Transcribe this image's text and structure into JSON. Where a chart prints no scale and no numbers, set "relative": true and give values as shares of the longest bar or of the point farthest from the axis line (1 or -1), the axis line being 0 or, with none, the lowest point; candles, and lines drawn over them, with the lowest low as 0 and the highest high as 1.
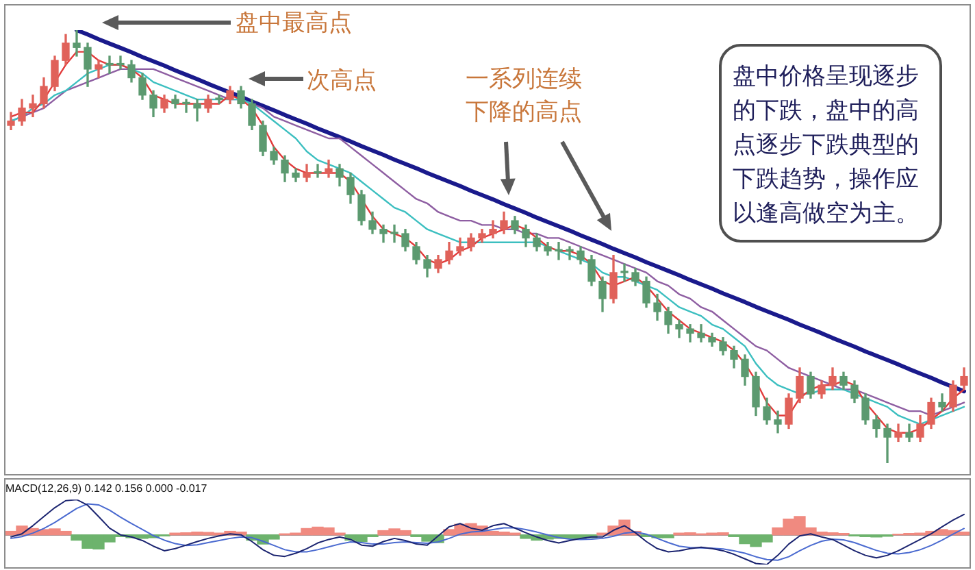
{
  "chart_data": [
    {
      "type": "candlestick",
      "relative": true,
      "annotations": [
        "盘中最高点",
        "次高点",
        "一系列连续下降的高点",
        "盘中价格呈现逐步的下跌，盘中的高点逐步下跌典型的下跌趋势，操作应以逢高做空为主。"
      ],
      "categories": [
        null,
        null,
        null,
        null,
        null,
        null,
        null,
        null,
        null,
        null,
        null,
        null,
        null,
        null,
        null,
        null,
        null,
        null,
        null,
        null,
        null,
        null,
        null,
        null,
        null,
        null,
        null,
        null,
        null,
        null,
        null,
        null,
        null,
        null,
        null,
        null,
        null,
        null,
        null,
        null,
        null,
        null,
        null,
        null,
        null,
        null,
        null,
        null,
        null,
        null,
        null,
        null,
        null,
        null,
        null,
        null,
        null,
        null,
        null,
        null,
        null,
        null,
        null,
        null,
        null,
        null,
        null,
        null,
        null,
        null,
        null,
        null,
        null,
        null,
        null,
        null,
        null,
        null,
        null,
        null,
        null,
        null,
        null,
        null,
        null,
        null,
        null,
        null
      ],
      "ohlc": [
        [
          0.78,
          0.81,
          0.77,
          0.79
        ],
        [
          0.79,
          0.84,
          0.78,
          0.82
        ],
        [
          0.82,
          0.85,
          0.8,
          0.83
        ],
        [
          0.83,
          0.89,
          0.82,
          0.87
        ],
        [
          0.87,
          0.94,
          0.86,
          0.93
        ],
        [
          0.93,
          0.99,
          0.92,
          0.97
        ],
        [
          0.97,
          1.0,
          0.94,
          0.96
        ],
        [
          0.96,
          0.97,
          0.87,
          0.91
        ],
        [
          0.91,
          0.93,
          0.89,
          0.92
        ],
        [
          0.92,
          0.94,
          0.9,
          0.92
        ],
        [
          0.92,
          0.94,
          0.91,
          0.92
        ],
        [
          0.92,
          0.93,
          0.88,
          0.89
        ],
        [
          0.89,
          0.9,
          0.84,
          0.85
        ],
        [
          0.85,
          0.86,
          0.8,
          0.82
        ],
        [
          0.82,
          0.85,
          0.81,
          0.84
        ],
        [
          0.84,
          0.85,
          0.82,
          0.83
        ],
        [
          0.83,
          0.84,
          0.81,
          0.83
        ],
        [
          0.83,
          0.84,
          0.79,
          0.82
        ],
        [
          0.82,
          0.85,
          0.81,
          0.84
        ],
        [
          0.84,
          0.85,
          0.83,
          0.84
        ],
        [
          0.84,
          0.87,
          0.83,
          0.86
        ],
        [
          0.86,
          0.87,
          0.82,
          0.83
        ],
        [
          0.83,
          0.84,
          0.77,
          0.78
        ],
        [
          0.78,
          0.79,
          0.71,
          0.72
        ],
        [
          0.72,
          0.73,
          0.69,
          0.7
        ],
        [
          0.7,
          0.71,
          0.65,
          0.67
        ],
        [
          0.67,
          0.68,
          0.65,
          0.66
        ],
        [
          0.66,
          0.69,
          0.65,
          0.67
        ],
        [
          0.67,
          0.69,
          0.66,
          0.67
        ],
        [
          0.67,
          0.7,
          0.66,
          0.68
        ],
        [
          0.68,
          0.69,
          0.64,
          0.66
        ],
        [
          0.66,
          0.67,
          0.6,
          0.62
        ],
        [
          0.62,
          0.63,
          0.55,
          0.56
        ],
        [
          0.56,
          0.58,
          0.53,
          0.54
        ],
        [
          0.54,
          0.55,
          0.51,
          0.53
        ],
        [
          0.53,
          0.55,
          0.51,
          0.53
        ],
        [
          0.53,
          0.54,
          0.49,
          0.5
        ],
        [
          0.5,
          0.51,
          0.46,
          0.47
        ],
        [
          0.47,
          0.48,
          0.43,
          0.45
        ],
        [
          0.45,
          0.48,
          0.44,
          0.47
        ],
        [
          0.47,
          0.51,
          0.46,
          0.49
        ],
        [
          0.49,
          0.52,
          0.48,
          0.5
        ],
        [
          0.5,
          0.53,
          0.49,
          0.52
        ],
        [
          0.52,
          0.54,
          0.51,
          0.53
        ],
        [
          0.53,
          0.56,
          0.52,
          0.54
        ],
        [
          0.54,
          0.58,
          0.53,
          0.56
        ],
        [
          0.56,
          0.57,
          0.53,
          0.54
        ],
        [
          0.54,
          0.55,
          0.5,
          0.52
        ],
        [
          0.52,
          0.53,
          0.49,
          0.5
        ],
        [
          0.5,
          0.51,
          0.48,
          0.49
        ],
        [
          0.49,
          0.51,
          0.47,
          0.49
        ],
        [
          0.49,
          0.5,
          0.47,
          0.49
        ],
        [
          0.49,
          0.5,
          0.46,
          0.47
        ],
        [
          0.47,
          0.48,
          0.41,
          0.42
        ],
        [
          0.42,
          0.43,
          0.35,
          0.38
        ],
        [
          0.38,
          0.48,
          0.37,
          0.44
        ],
        [
          0.44,
          0.46,
          0.42,
          0.44
        ],
        [
          0.44,
          0.45,
          0.41,
          0.42
        ],
        [
          0.42,
          0.43,
          0.36,
          0.37
        ],
        [
          0.37,
          0.39,
          0.33,
          0.35
        ],
        [
          0.35,
          0.36,
          0.3,
          0.32
        ],
        [
          0.32,
          0.33,
          0.29,
          0.31
        ],
        [
          0.31,
          0.32,
          0.28,
          0.3
        ],
        [
          0.3,
          0.32,
          0.28,
          0.29
        ],
        [
          0.29,
          0.3,
          0.27,
          0.28
        ],
        [
          0.28,
          0.29,
          0.25,
          0.26
        ],
        [
          0.26,
          0.27,
          0.22,
          0.24
        ],
        [
          0.24,
          0.25,
          0.18,
          0.2
        ],
        [
          0.2,
          0.21,
          0.11,
          0.13
        ],
        [
          0.13,
          0.15,
          0.09,
          0.1
        ],
        [
          0.1,
          0.12,
          0.07,
          0.09
        ],
        [
          0.09,
          0.16,
          0.08,
          0.15
        ],
        [
          0.15,
          0.22,
          0.14,
          0.2
        ],
        [
          0.2,
          0.21,
          0.15,
          0.16
        ],
        [
          0.16,
          0.19,
          0.15,
          0.18
        ],
        [
          0.18,
          0.22,
          0.17,
          0.2
        ],
        [
          0.2,
          0.21,
          0.17,
          0.18
        ],
        [
          0.18,
          0.19,
          0.14,
          0.15
        ],
        [
          0.15,
          0.16,
          0.09,
          0.1
        ],
        [
          0.1,
          0.11,
          0.06,
          0.08
        ],
        [
          0.08,
          0.09,
          0.0,
          0.06
        ],
        [
          0.06,
          0.09,
          0.05,
          0.07
        ],
        [
          0.07,
          0.09,
          0.05,
          0.06
        ],
        [
          0.06,
          0.11,
          0.05,
          0.09
        ],
        [
          0.09,
          0.15,
          0.08,
          0.14
        ],
        [
          0.14,
          0.16,
          0.12,
          0.13
        ],
        [
          0.13,
          0.19,
          0.12,
          0.18
        ],
        [
          0.18,
          0.22,
          0.17,
          0.2
        ]
      ],
      "colors": [
        "#e0625a",
        "#e0625a",
        "#e0625a",
        "#e0625a",
        "#e0625a",
        "#e0625a",
        "#5c9a70",
        "#5c9a70",
        "#e0625a",
        "#5c9a70",
        "#5c9a70",
        "#5c9a70",
        "#5c9a70",
        "#5c9a70",
        "#e0625a",
        "#5c9a70",
        "#5c9a70",
        "#5c9a70",
        "#e0625a",
        "#5c9a70",
        "#e0625a",
        "#5c9a70",
        "#5c9a70",
        "#5c9a70",
        "#5c9a70",
        "#5c9a70",
        "#5c9a70",
        "#e0625a",
        "#5c9a70",
        "#e0625a",
        "#5c9a70",
        "#5c9a70",
        "#5c9a70",
        "#5c9a70",
        "#5c9a70",
        "#5c9a70",
        "#5c9a70",
        "#5c9a70",
        "#5c9a70",
        "#e0625a",
        "#e0625a",
        "#e0625a",
        "#e0625a",
        "#e0625a",
        "#e0625a",
        "#e0625a",
        "#5c9a70",
        "#5c9a70",
        "#5c9a70",
        "#5c9a70",
        "#5c9a70",
        "#5c9a70",
        "#5c9a70",
        "#5c9a70",
        "#5c9a70",
        "#e0625a",
        "#5c9a70",
        "#5c9a70",
        "#5c9a70",
        "#5c9a70",
        "#5c9a70",
        "#5c9a70",
        "#5c9a70",
        "#5c9a70",
        "#5c9a70",
        "#5c9a70",
        "#5c9a70",
        "#5c9a70",
        "#5c9a70",
        "#5c9a70",
        "#5c9a70",
        "#e0625a",
        "#e0625a",
        "#5c9a70",
        "#e0625a",
        "#e0625a",
        "#5c9a70",
        "#5c9a70",
        "#5c9a70",
        "#5c9a70",
        "#5c9a70",
        "#e0625a",
        "#5c9a70",
        "#e0625a",
        "#e0625a",
        "#5c9a70",
        "#e0625a",
        "#e0625a"
      ],
      "series": [
        {
          "type": "line",
          "color": "#e23b3b",
          "values": [
            0.8,
            0.81,
            0.81,
            0.84,
            0.88,
            0.92,
            0.95,
            0.95,
            0.93,
            0.92,
            0.92,
            0.91,
            0.89,
            0.85,
            0.84,
            0.83,
            0.83,
            0.83,
            0.83,
            0.83,
            0.85,
            0.84,
            0.82,
            0.78,
            0.73,
            0.7,
            0.68,
            0.67,
            0.67,
            0.67,
            0.67,
            0.65,
            0.61,
            0.57,
            0.54,
            0.53,
            0.52,
            0.5,
            0.47,
            0.46,
            0.47,
            0.49,
            0.5,
            0.52,
            0.53,
            0.54,
            0.55,
            0.54,
            0.52,
            0.5,
            0.49,
            0.49,
            0.48,
            0.46,
            0.42,
            0.41,
            0.42,
            0.43,
            0.41,
            0.38,
            0.35,
            0.33,
            0.31,
            0.3,
            0.29,
            0.28,
            0.26,
            0.23,
            0.19,
            0.14,
            0.11,
            0.11,
            0.15,
            0.17,
            0.18,
            0.18,
            0.19,
            0.18,
            0.14,
            0.11,
            0.08,
            0.07,
            0.07,
            0.08,
            0.1,
            0.12,
            0.15,
            0.17
          ]
        },
        {
          "type": "line",
          "color": "#3cbfc0",
          "values": [
            0.79,
            0.8,
            0.82,
            0.83,
            0.85,
            0.86,
            0.88,
            0.9,
            0.91,
            0.92,
            0.92,
            0.91,
            0.9,
            0.88,
            0.87,
            0.86,
            0.85,
            0.84,
            0.84,
            0.84,
            0.84,
            0.84,
            0.83,
            0.81,
            0.79,
            0.77,
            0.75,
            0.72,
            0.7,
            0.69,
            0.68,
            0.67,
            0.65,
            0.63,
            0.61,
            0.59,
            0.58,
            0.56,
            0.54,
            0.53,
            0.52,
            0.51,
            0.51,
            0.51,
            0.51,
            0.51,
            0.51,
            0.51,
            0.51,
            0.5,
            0.49,
            0.48,
            0.47,
            0.46,
            0.44,
            0.43,
            0.43,
            0.42,
            0.41,
            0.4,
            0.38,
            0.36,
            0.35,
            0.34,
            0.32,
            0.31,
            0.29,
            0.27,
            0.23,
            0.2,
            0.18,
            0.17,
            0.16,
            0.16,
            0.17,
            0.17,
            0.17,
            0.16,
            0.15,
            0.14,
            0.13,
            0.11,
            0.1,
            0.09,
            0.1,
            0.11,
            0.12,
            0.13
          ]
        },
        {
          "type": "line",
          "color": "#8e5ea2",
          "values": [
            0.79,
            0.8,
            0.81,
            0.82,
            0.84,
            0.86,
            0.87,
            0.88,
            0.89,
            0.9,
            0.91,
            0.91,
            0.91,
            0.91,
            0.9,
            0.89,
            0.88,
            0.87,
            0.86,
            0.85,
            0.84,
            0.84,
            0.83,
            0.82,
            0.8,
            0.79,
            0.78,
            0.77,
            0.76,
            0.75,
            0.75,
            0.73,
            0.71,
            0.69,
            0.67,
            0.65,
            0.63,
            0.61,
            0.6,
            0.58,
            0.57,
            0.56,
            0.56,
            0.55,
            0.55,
            0.54,
            0.54,
            0.53,
            0.53,
            0.52,
            0.52,
            0.51,
            0.5,
            0.49,
            0.48,
            0.47,
            0.46,
            0.45,
            0.44,
            0.42,
            0.41,
            0.39,
            0.38,
            0.36,
            0.35,
            0.33,
            0.31,
            0.29,
            0.27,
            0.26,
            0.24,
            0.22,
            0.21,
            0.2,
            0.19,
            0.18,
            0.17,
            0.17,
            0.16,
            0.15,
            0.14,
            0.13,
            0.12,
            0.12,
            0.11,
            0.12,
            0.13,
            0.14
          ]
        },
        {
          "type": "line",
          "color": "#1a1a8c",
          "values": [
            null,
            null,
            null,
            null,
            null,
            null,
            1.0,
            0.99,
            0.979,
            0.969,
            0.959,
            0.949,
            0.938,
            0.928,
            0.918,
            0.907,
            0.897,
            0.887,
            0.876,
            0.866,
            0.856,
            0.846,
            0.835,
            0.825,
            0.815,
            0.804,
            0.794,
            0.784,
            0.773,
            0.763,
            0.753,
            0.743,
            0.732,
            0.722,
            0.712,
            0.701,
            0.691,
            0.681,
            0.67,
            0.66,
            0.65,
            0.64,
            0.629,
            0.619,
            0.609,
            0.598,
            0.588,
            0.578,
            0.567,
            0.557,
            0.547,
            0.537,
            0.526,
            0.516,
            0.506,
            0.495,
            0.485,
            0.475,
            0.464,
            0.454,
            0.444,
            0.434,
            0.423,
            0.413,
            0.403,
            0.392,
            0.382,
            0.372,
            0.361,
            0.351,
            0.341,
            0.331,
            0.32,
            0.31,
            0.3,
            0.289,
            0.279,
            0.269,
            0.258,
            0.248,
            0.238,
            0.228,
            0.217,
            0.207,
            0.197,
            0.186,
            0.176,
            0.166
          ]
        }
      ]
    },
    {
      "type": "bar",
      "relative": true,
      "title": "MACD(12,26,9) 0.142 0.156 0.000 -0.017",
      "categories": [
        null,
        null,
        null,
        null,
        null,
        null,
        null,
        null,
        null,
        null,
        null,
        null,
        null,
        null,
        null,
        null,
        null,
        null,
        null,
        null,
        null,
        null,
        null,
        null,
        null,
        null,
        null,
        null,
        null,
        null,
        null,
        null,
        null,
        null,
        null,
        null,
        null,
        null,
        null,
        null,
        null,
        null,
        null,
        null,
        null,
        null,
        null,
        null,
        null,
        null,
        null,
        null,
        null,
        null,
        null,
        null,
        null,
        null,
        null,
        null,
        null,
        null,
        null,
        null,
        null,
        null,
        null,
        null,
        null,
        null,
        null,
        null,
        null,
        null,
        null,
        null,
        null,
        null,
        null,
        null,
        null,
        null,
        null,
        null,
        null,
        null,
        null,
        null
      ],
      "series": [
        {
          "type": "bar",
          "colors": [
            "#f08a80",
            "#f08a80",
            "#f08a80",
            "#f08a80",
            "#f08a80",
            "#f08a80",
            "#6db36d",
            "#6db36d",
            "#6db36d",
            "#6db36d",
            "#6db36d",
            "#6db36d",
            "#6db36d",
            "#6db36d",
            "#6db36d",
            "#f08a80",
            "#f08a80",
            "#f08a80",
            "#f08a80",
            "#f08a80",
            "#f08a80",
            "#f08a80",
            "#6db36d",
            "#6db36d",
            "#6db36d",
            "#f08a80",
            "#f08a80",
            "#f08a80",
            "#f08a80",
            "#f08a80",
            "#f08a80",
            "#6db36d",
            "#6db36d",
            "#6db36d",
            "#f08a80",
            "#f08a80",
            "#f08a80",
            "#6db36d",
            "#6db36d",
            "#6db36d",
            "#f08a80",
            "#f08a80",
            "#f08a80",
            "#f08a80",
            "#f08a80",
            "#f08a80",
            "#f08a80",
            "#6db36d",
            "#6db36d",
            "#6db36d",
            "#6db36d",
            "#6db36d",
            "#6db36d",
            "#6db36d",
            "#f08a80",
            "#f08a80",
            "#f08a80",
            "#f08a80",
            "#6db36d",
            "#6db36d",
            "#6db36d",
            "#f08a80",
            "#f08a80",
            "#f08a80",
            "#f08a80",
            "#f08a80",
            "#6db36d",
            "#6db36d",
            "#6db36d",
            "#6db36d",
            "#f08a80",
            "#f08a80",
            "#f08a80",
            "#f08a80",
            "#f08a80",
            "#f08a80",
            "#f08a80",
            "#6db36d",
            "#6db36d",
            "#6db36d",
            "#6db36d",
            "#f08a80",
            "#f08a80",
            "#f08a80",
            "#f08a80",
            "#f08a80",
            "#f08a80",
            "#f08a80"
          ],
          "values": [
            0.1,
            0.25,
            0.18,
            0.15,
            0.17,
            0.1,
            -0.15,
            -0.38,
            -0.4,
            -0.2,
            -0.05,
            -0.08,
            -0.1,
            -0.08,
            -0.03,
            0.05,
            0.06,
            0.08,
            0.07,
            0.05,
            0.1,
            0.08,
            -0.15,
            -0.26,
            -0.12,
            0.03,
            0.05,
            0.18,
            0.22,
            0.2,
            0.05,
            -0.15,
            -0.19,
            -0.05,
            0.12,
            0.17,
            0.12,
            -0.05,
            -0.18,
            -0.22,
            0.15,
            0.3,
            0.32,
            0.25,
            0.1,
            0.08,
            0.05,
            -0.1,
            -0.15,
            -0.12,
            -0.1,
            -0.1,
            -0.12,
            -0.08,
            0.05,
            0.25,
            0.42,
            0.1,
            -0.05,
            -0.08,
            -0.08,
            0.05,
            0.06,
            0.03,
            0.05,
            0.06,
            -0.05,
            -0.25,
            -0.33,
            -0.2,
            0.2,
            0.45,
            0.52,
            0.2,
            0.08,
            0.06,
            0.04,
            -0.03,
            -0.05,
            -0.06,
            -0.04,
            0.02,
            0.04,
            0.05,
            0.1,
            0.15,
            0.12,
            0.08
          ]
        },
        {
          "type": "line",
          "color": "#1b2470",
          "values": [
            -0.06,
            0.03,
            0.26,
            0.52,
            0.77,
            0.97,
            1.0,
            0.84,
            0.52,
            0.19,
            0.0,
            -0.06,
            -0.16,
            -0.32,
            -0.45,
            -0.39,
            -0.29,
            -0.19,
            -0.1,
            -0.03,
            0.03,
            0.0,
            -0.19,
            -0.42,
            -0.58,
            -0.61,
            -0.52,
            -0.39,
            -0.23,
            -0.13,
            -0.06,
            -0.13,
            -0.29,
            -0.32,
            -0.19,
            -0.1,
            -0.16,
            -0.26,
            -0.29,
            -0.03,
            0.23,
            0.32,
            0.19,
            0.13,
            0.26,
            0.32,
            0.19,
            0.06,
            -0.06,
            -0.16,
            -0.23,
            -0.16,
            -0.1,
            -0.06,
            -0.06,
            0.13,
            0.26,
            0.06,
            -0.19,
            -0.39,
            -0.48,
            -0.45,
            -0.39,
            -0.35,
            -0.39,
            -0.45,
            -0.55,
            -0.68,
            -0.81,
            -0.84,
            -0.58,
            -0.26,
            -0.03,
            0.03,
            -0.06,
            -0.13,
            -0.29,
            -0.45,
            -0.58,
            -0.65,
            -0.58,
            -0.45,
            -0.29,
            -0.13,
            0.03,
            0.23,
            0.42,
            0.58
          ]
        },
        {
          "type": "line",
          "color": "#4a6ad0",
          "values": [
            -0.1,
            -0.05,
            0.05,
            0.18,
            0.35,
            0.55,
            0.75,
            0.88,
            0.85,
            0.7,
            0.5,
            0.32,
            0.15,
            -0.02,
            -0.15,
            -0.25,
            -0.3,
            -0.28,
            -0.22,
            -0.16,
            -0.1,
            -0.06,
            -0.08,
            -0.18,
            -0.3,
            -0.42,
            -0.48,
            -0.48,
            -0.42,
            -0.34,
            -0.26,
            -0.2,
            -0.22,
            -0.26,
            -0.26,
            -0.22,
            -0.2,
            -0.22,
            -0.24,
            -0.2,
            -0.1,
            0.02,
            0.08,
            0.1,
            0.15,
            0.2,
            0.2,
            0.15,
            0.08,
            0.0,
            -0.08,
            -0.12,
            -0.13,
            -0.12,
            -0.1,
            -0.04,
            0.05,
            0.08,
            0.02,
            -0.1,
            -0.22,
            -0.32,
            -0.36,
            -0.37,
            -0.38,
            -0.4,
            -0.45,
            -0.52,
            -0.62,
            -0.7,
            -0.72,
            -0.62,
            -0.45,
            -0.3,
            -0.18,
            -0.12,
            -0.14,
            -0.22,
            -0.33,
            -0.44,
            -0.52,
            -0.54,
            -0.5,
            -0.42,
            -0.3,
            -0.15,
            0.02,
            0.18
          ]
        }
      ]
    }
  ]
}
